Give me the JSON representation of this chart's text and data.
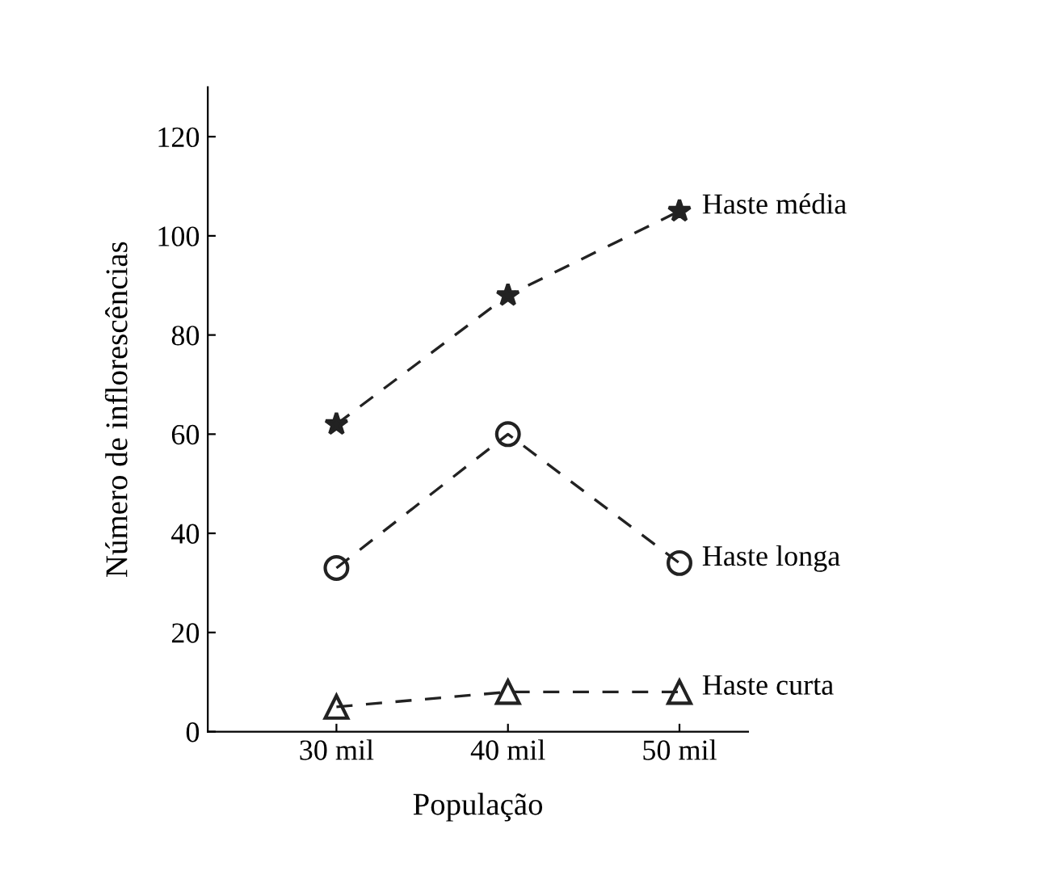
{
  "chart_data": {
    "type": "line",
    "xlabel": "População",
    "ylabel": "Número de inflorescências",
    "categories": [
      "30 mil",
      "40 mil",
      "50 mil"
    ],
    "series": [
      {
        "name": "Haste média",
        "color": "#222222",
        "values": [
          62,
          88,
          105
        ],
        "marker": "star"
      },
      {
        "name": "Haste longa",
        "color": "#222222",
        "values": [
          33,
          60,
          34
        ],
        "marker": "circle"
      },
      {
        "name": "Haste curta",
        "color": "#222222",
        "values": [
          5,
          8,
          8
        ],
        "marker": "triangle"
      }
    ],
    "ylim": [
      0,
      130
    ],
    "yticks": [
      0,
      20,
      40,
      60,
      80,
      100,
      120
    ],
    "line_style": "dashed",
    "grid": false,
    "legend": false
  }
}
